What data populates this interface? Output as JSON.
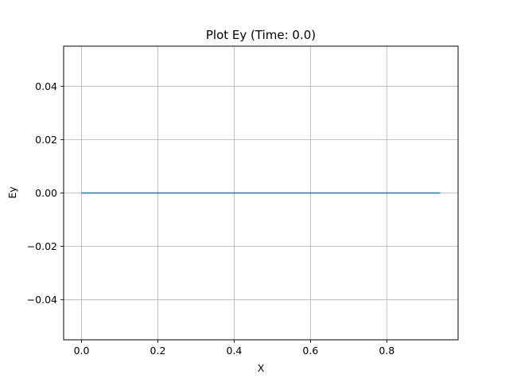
{
  "chart_data": {
    "type": "line",
    "title": "Plot Ey (Time: 0.0)",
    "xlabel": "X",
    "ylabel": "Ey",
    "xlim": [
      -0.047,
      0.987
    ],
    "ylim": [
      -0.055,
      0.055
    ],
    "x_ticks": [
      0.0,
      0.2,
      0.4,
      0.6,
      0.8
    ],
    "x_tick_labels": [
      "0.0",
      "0.2",
      "0.4",
      "0.6",
      "0.8"
    ],
    "y_ticks": [
      -0.04,
      -0.02,
      0.0,
      0.02,
      0.04
    ],
    "y_tick_labels": [
      "−0.04",
      "−0.02",
      "0.00",
      "0.02",
      "0.04"
    ],
    "grid": true,
    "series": [
      {
        "color": "#1f77b4",
        "x": [
          0.0,
          0.94
        ],
        "y": [
          0.0,
          0.0
        ]
      }
    ]
  }
}
